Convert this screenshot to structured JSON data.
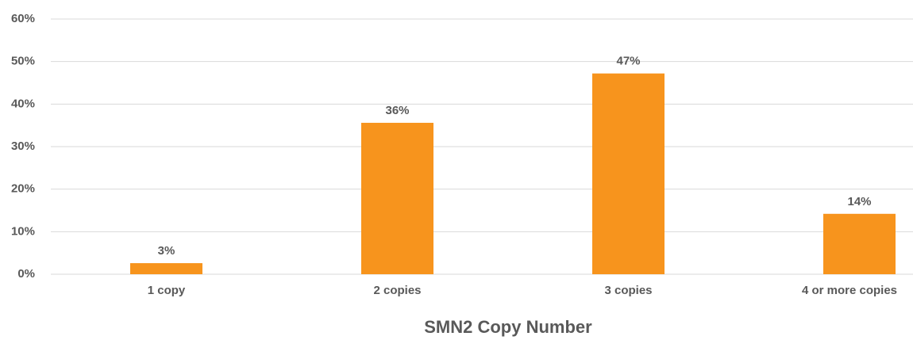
{
  "chart_data": {
    "type": "bar",
    "x_label": "SMN2 Copy Number",
    "categories": [
      "1 copy",
      "2 copies",
      "3 copies",
      "4 or more copies"
    ],
    "values": [
      2.6,
      35.6,
      47.2,
      14.2
    ],
    "value_labels": [
      "3%",
      "36%",
      "47%",
      "14%"
    ],
    "color": "#f7941d",
    "ylim": [
      0,
      60
    ],
    "yticks": [
      {
        "value": 0,
        "label": "0%"
      },
      {
        "value": 10,
        "label": "10%"
      },
      {
        "value": 20,
        "label": "20%"
      },
      {
        "value": 30,
        "label": "30%"
      },
      {
        "value": 40,
        "label": "40%"
      },
      {
        "value": 50,
        "label": "50%"
      },
      {
        "value": 60,
        "label": "60%"
      }
    ],
    "grid": true
  }
}
